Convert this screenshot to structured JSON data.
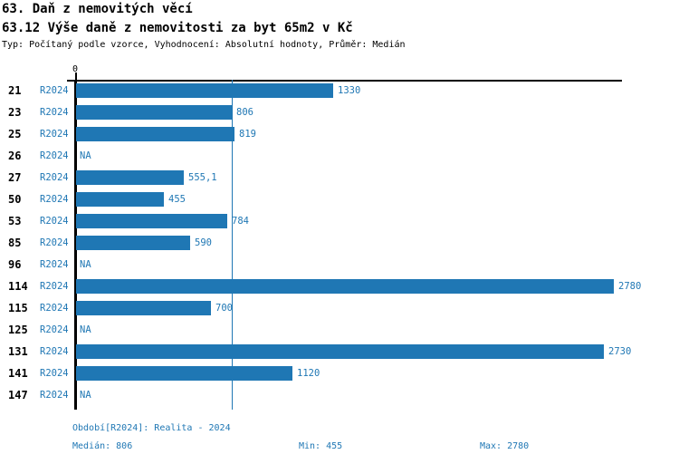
{
  "chart_data": {
    "type": "bar",
    "orientation": "horizontal",
    "title": "63. Daň z nemovitých věcí",
    "subtitle": "63.12 Výše daně z nemovitosti za byt 65m2 v Kč",
    "meta": "Typ: Počítaný podle vzorce, Vyhodnocení: Absolutní hodnoty, Průměr: Medián",
    "series_label": "R2024",
    "categories": [
      "21",
      "23",
      "25",
      "26",
      "27",
      "50",
      "53",
      "85",
      "96",
      "114",
      "115",
      "125",
      "131",
      "141",
      "147"
    ],
    "values": [
      1330,
      806,
      819,
      null,
      555.1,
      455,
      784,
      590,
      null,
      2780,
      700,
      null,
      2730,
      1120,
      null
    ],
    "value_labels": [
      "1330",
      "806",
      "819",
      "NA",
      "555,1",
      "455",
      "784",
      "590",
      "NA",
      "2780",
      "700",
      "NA",
      "2730",
      "1120",
      "NA"
    ],
    "na_label": "NA",
    "x_axis": {
      "zero_label": "0",
      "min": 0,
      "max_shown_value": 2780,
      "median_reference_line": 806,
      "grid": false
    },
    "legend": {
      "position": "none"
    },
    "footer": {
      "period": "Období[R2024]: Realita - 2024",
      "median": "Medián: 806",
      "min": "Min: 455",
      "max": "Max: 2780"
    },
    "colors": {
      "bar": "#1f77b4",
      "value_text": "#1f77b4",
      "axis": "#000000",
      "title_text": "#000000",
      "background": "#ffffff"
    }
  }
}
